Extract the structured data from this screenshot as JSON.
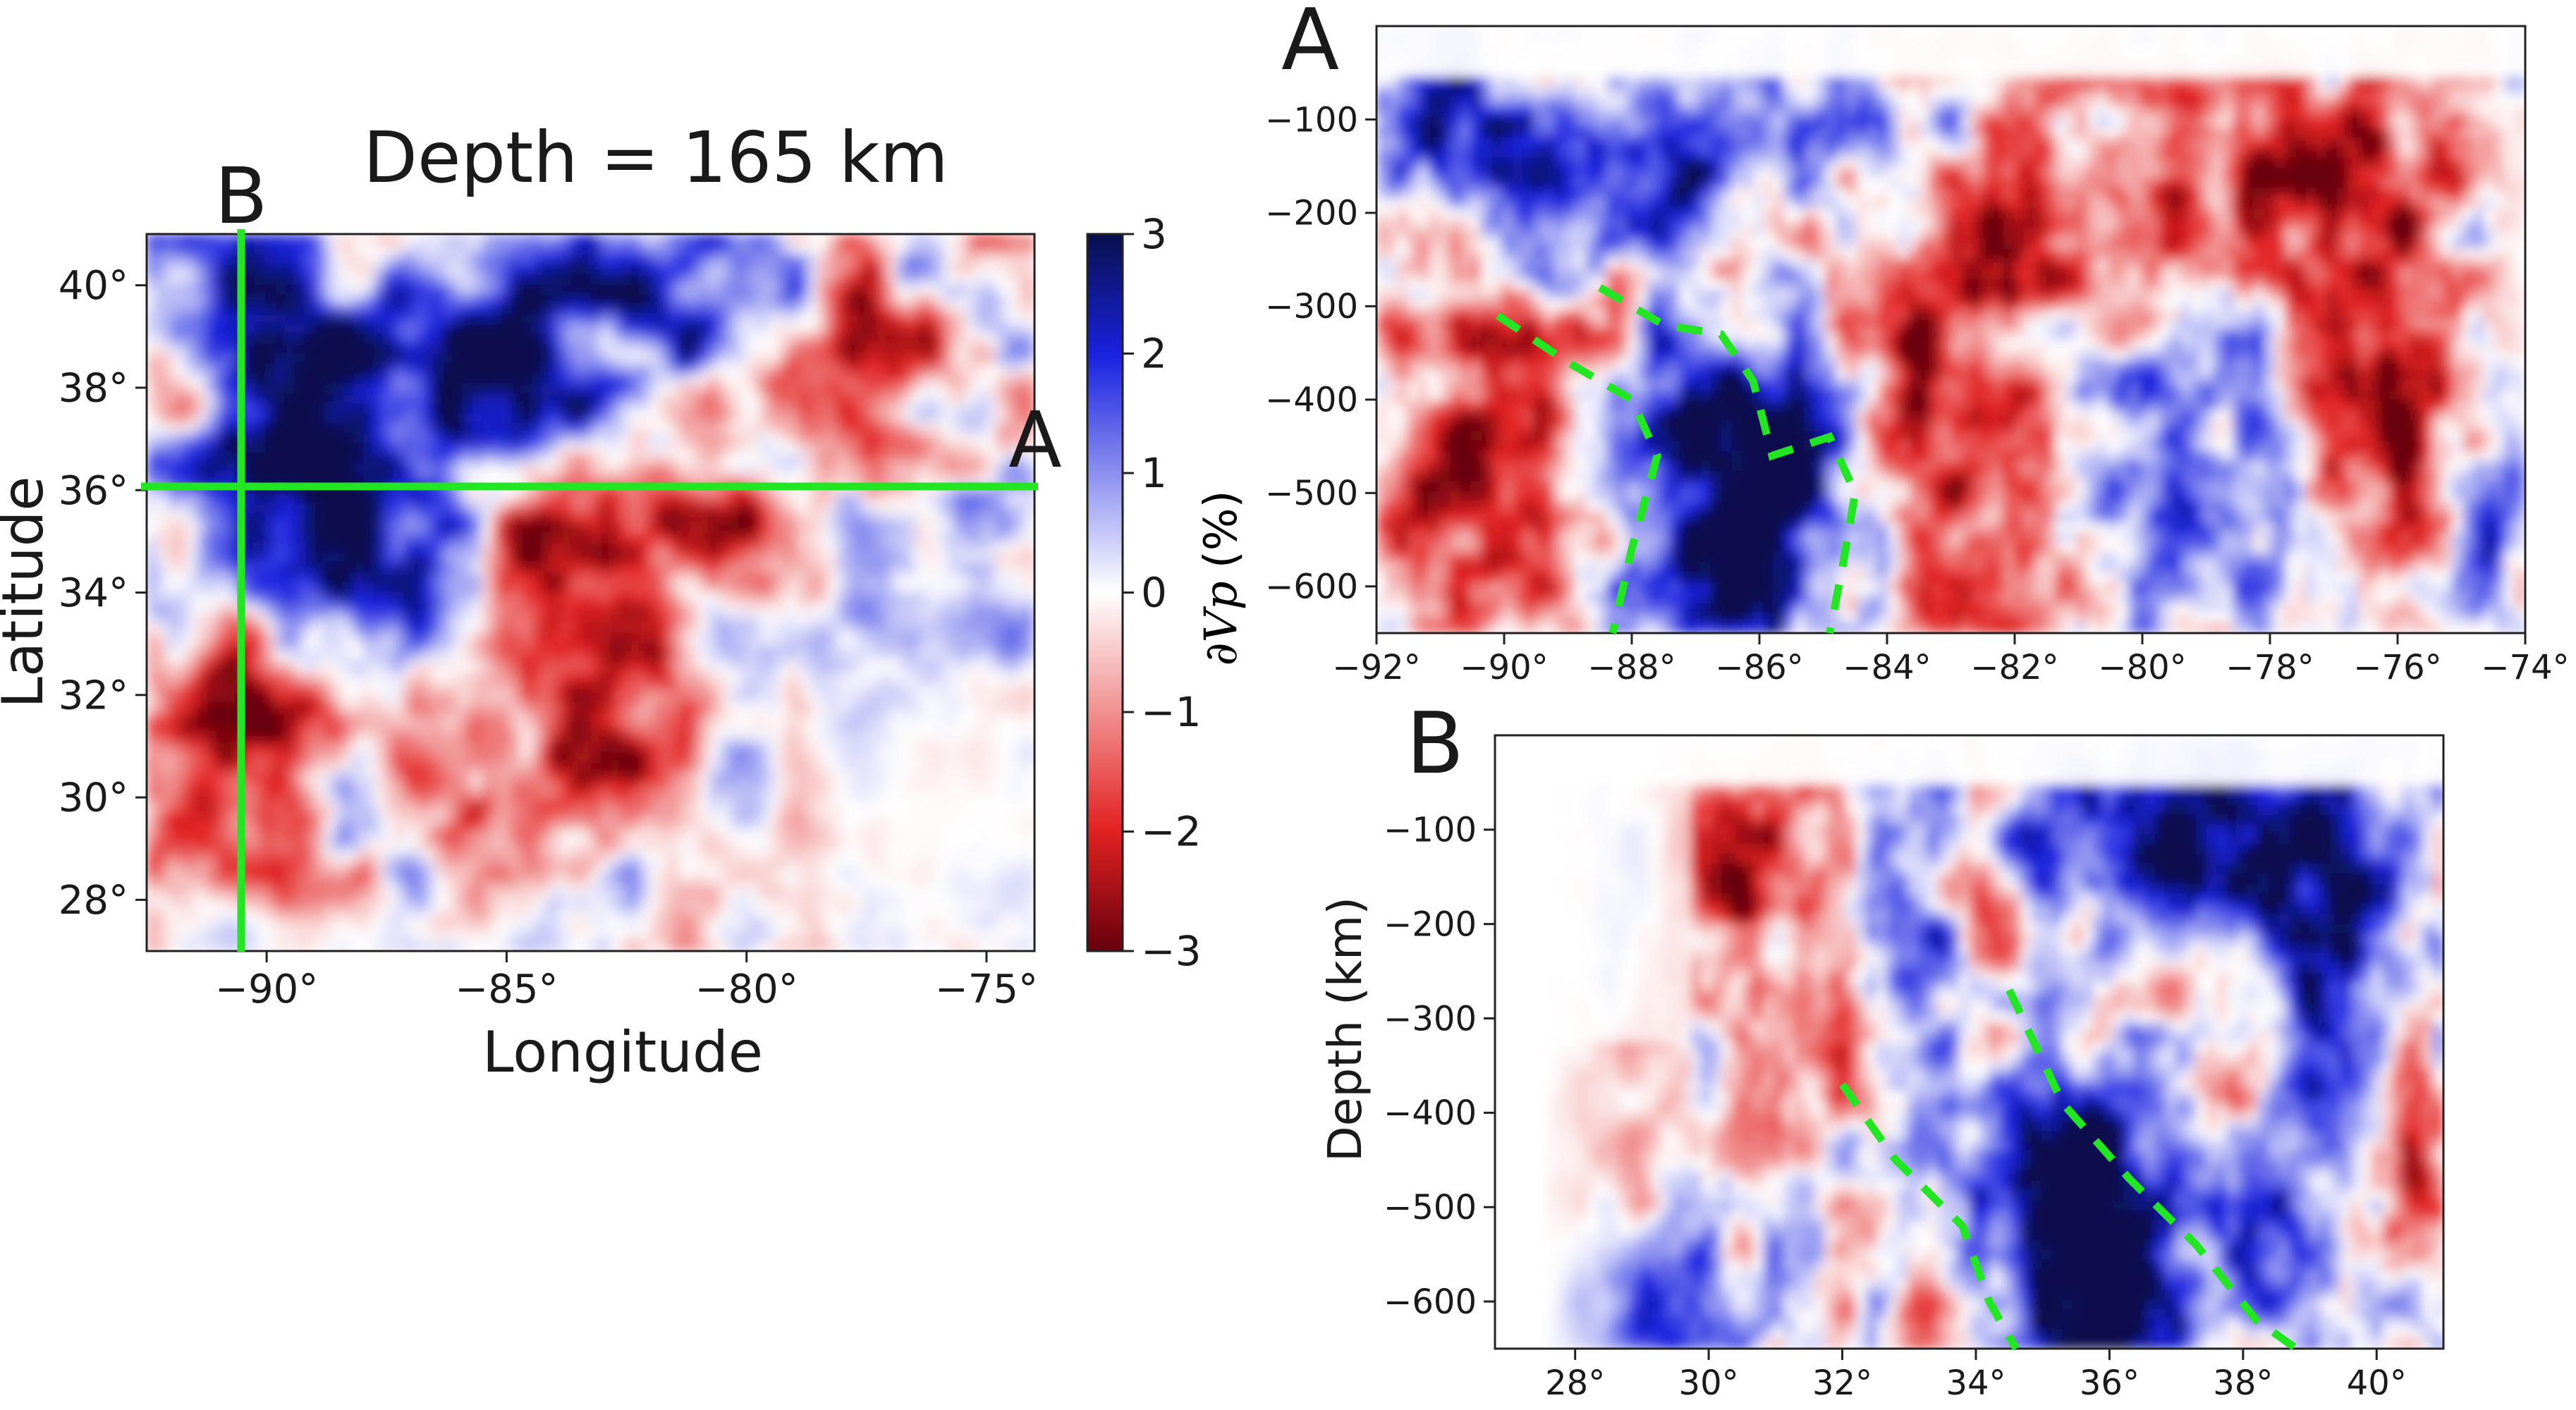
{
  "chart_data": [
    {
      "id": "map",
      "type": "heatmap",
      "title": "Depth = 165 km",
      "xlabel": "Longitude",
      "ylabel": "Latitude",
      "xlim": [
        -92.5,
        -74
      ],
      "ylim": [
        27,
        41
      ],
      "xticks": [
        -90,
        -85,
        -80,
        -75
      ],
      "xtick_labels": [
        "−90°",
        "−85°",
        "−80°",
        "−75°"
      ],
      "yticks": [
        28,
        30,
        32,
        34,
        36,
        38,
        40
      ],
      "ytick_labels": [
        "28°",
        "30°",
        "32°",
        "34°",
        "36°",
        "38°",
        "40°"
      ],
      "profile_lines": [
        {
          "label": "A",
          "orientation": "horizontal",
          "value": 36,
          "color": "#22e622"
        },
        {
          "label": "B",
          "orientation": "vertical",
          "value": -90,
          "color": "#22e622"
        }
      ]
    },
    {
      "id": "profile-a",
      "type": "heatmap",
      "panel_label": "A",
      "xlabel": "",
      "ylabel": "",
      "xlim": [
        -92,
        -74
      ],
      "ylim": [
        -650,
        0
      ],
      "xticks": [
        -92,
        -90,
        -88,
        -86,
        -84,
        -82,
        -80,
        -78,
        -76,
        -74
      ],
      "xtick_labels": [
        "−92°",
        "−90°",
        "−88°",
        "−86°",
        "−84°",
        "−82°",
        "−80°",
        "−78°",
        "−76°",
        "−74°"
      ],
      "yticks": [
        -100,
        -200,
        -300,
        -400,
        -500,
        -600
      ],
      "ytick_labels": [
        "−100",
        "−200",
        "−300",
        "−400",
        "−500",
        "−600"
      ],
      "dashed_outlines": [
        [
          [
            -90.1,
            -310
          ],
          [
            -89.0,
            -360
          ],
          [
            -88.0,
            -400
          ],
          [
            -87.6,
            -460
          ],
          [
            -88.0,
            -560
          ],
          [
            -88.3,
            -650
          ]
        ],
        [
          [
            -88.5,
            -280
          ],
          [
            -87.5,
            -320
          ],
          [
            -86.6,
            -330
          ],
          [
            -86.1,
            -380
          ],
          [
            -85.8,
            -460
          ],
          [
            -84.9,
            -440
          ],
          [
            -84.5,
            -500
          ],
          [
            -84.7,
            -580
          ],
          [
            -84.9,
            -650
          ]
        ]
      ]
    },
    {
      "id": "profile-b",
      "type": "heatmap",
      "panel_label": "B",
      "xlabel": "",
      "ylabel": "Depth (km)",
      "xlim": [
        26.8,
        41
      ],
      "ylim": [
        -650,
        0
      ],
      "xticks": [
        28,
        30,
        32,
        34,
        36,
        38,
        40
      ],
      "xtick_labels": [
        "28°",
        "30°",
        "32°",
        "34°",
        "36°",
        "38°",
        "40°"
      ],
      "yticks": [
        -100,
        -200,
        -300,
        -400,
        -500,
        -600
      ],
      "ytick_labels": [
        "−100",
        "−200",
        "−300",
        "−400",
        "−500",
        "−600"
      ],
      "dashed_outlines": [
        [
          [
            32.0,
            -370
          ],
          [
            32.8,
            -450
          ],
          [
            33.8,
            -520
          ],
          [
            34.2,
            -600
          ],
          [
            34.6,
            -650
          ]
        ],
        [
          [
            34.5,
            -270
          ],
          [
            35.3,
            -390
          ],
          [
            36.3,
            -470
          ],
          [
            37.3,
            -540
          ],
          [
            38.2,
            -620
          ],
          [
            38.8,
            -650
          ]
        ]
      ]
    }
  ],
  "colorbar": {
    "label": "∂Vp (%)",
    "label_math": "∂Vp",
    "label_unit": "(%)",
    "min": -3,
    "max": 3,
    "ticks": [
      3,
      2,
      1,
      0,
      -1,
      -2,
      -3
    ],
    "tick_labels": [
      "3",
      "2",
      "1",
      "0",
      "−1",
      "−2",
      "−3"
    ],
    "colors": [
      "#67000d",
      "#e32222",
      "#ffffff",
      "#1a22e0",
      "#08104d"
    ]
  },
  "styles": {
    "line_color": "#22e622",
    "text_color": "#1a1a1a"
  }
}
